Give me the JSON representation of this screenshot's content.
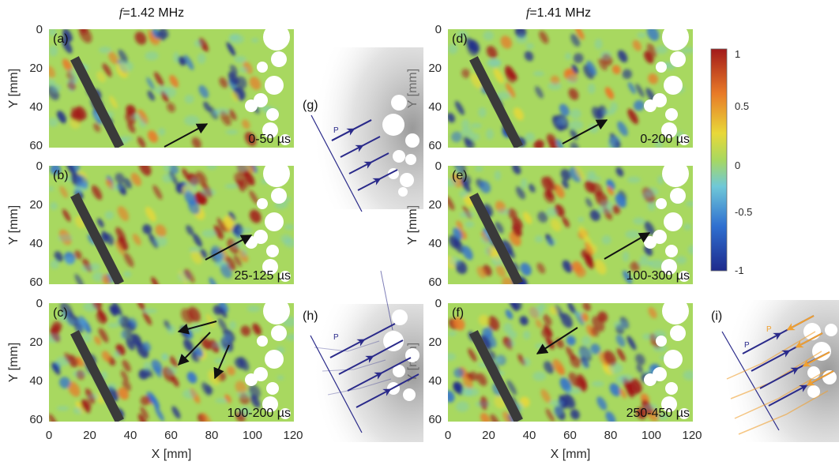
{
  "frequencies": [
    {
      "italic": "f",
      "rest": "=1.42 MHz"
    },
    {
      "italic": "f",
      "rest": "=1.41 MHz"
    }
  ],
  "panels": [
    {
      "label": "(a)",
      "time": "0-50 µs",
      "arrows": [
        [
          208,
          186,
          262,
          157
        ]
      ]
    },
    {
      "label": "(b)",
      "time": "25-125 µs",
      "arrows": [
        [
          260,
          329,
          318,
          298
        ]
      ]
    },
    {
      "label": "(c)",
      "time": "100-200 µs",
      "arrows": [
        [
          274,
          407,
          226,
          420
        ],
        [
          266,
          421,
          226,
          462
        ],
        [
          290,
          437,
          272,
          479
        ]
      ]
    },
    {
      "label": "(d)",
      "time": "0-200 µs",
      "arrows": [
        [
          712,
          182,
          768,
          152
        ]
      ]
    },
    {
      "label": "(e)",
      "time": "100-300 µs",
      "arrows": [
        [
          765,
          328,
          822,
          295
        ]
      ]
    },
    {
      "label": "(f)",
      "time": "250-450 µs",
      "arrows": [
        [
          731,
          415,
          680,
          448
        ]
      ]
    }
  ],
  "y_axis": {
    "label": "Y [mm]",
    "ticks": [
      "0",
      "20",
      "40",
      "60"
    ]
  },
  "x_axis": {
    "label": "X [mm]",
    "ticks": [
      "0",
      "20",
      "40",
      "60",
      "80",
      "100",
      "120"
    ]
  },
  "colorbar": {
    "ticks": [
      "1",
      "0.5",
      "0",
      "-0.5",
      "-1"
    ],
    "range": [
      -1,
      1
    ]
  },
  "schematics": [
    {
      "label": "(g)",
      "wave_labels": [
        "P"
      ]
    },
    {
      "label": "(h)",
      "wave_labels": [
        "P"
      ]
    },
    {
      "label": "(i)",
      "wave_labels": [
        "P",
        "P"
      ]
    }
  ],
  "colors": {
    "field_background": "#a8d860",
    "plate": "#3a3a3a",
    "incident_wave": "#2a2a8a",
    "reflected_wave": "#f0a030",
    "colormap": [
      "#1e2a8c",
      "#2f6fd0",
      "#6fc8d8",
      "#a8d860",
      "#e8d838",
      "#e87a28",
      "#a21a1a"
    ]
  }
}
